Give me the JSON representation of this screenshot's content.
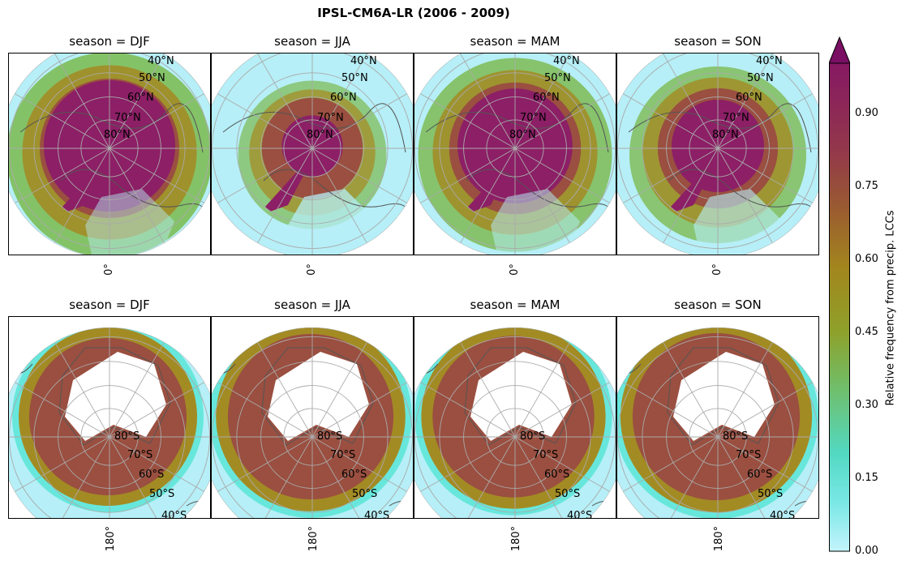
{
  "title": "IPSL-CM6A-LR (2006 - 2009)",
  "colors": {
    "low": "#b6eff7",
    "cyan": "#5ee5d8",
    "green": "#7ab84a",
    "olive": "#a38b24",
    "brown": "#9a4f40",
    "purple": "#8c1f66",
    "grid": "#aaaaaa",
    "coast": "#555555"
  },
  "panels": {
    "north": [
      {
        "title": "season = DJF",
        "lon_label": "0°",
        "intensity": 0.95
      },
      {
        "title": "season = JJA",
        "lon_label": "0°",
        "intensity": 0.45
      },
      {
        "title": "season = MAM",
        "lon_label": "0°",
        "intensity": 0.85
      },
      {
        "title": "season = SON",
        "lon_label": "0°",
        "intensity": 0.7
      }
    ],
    "south": [
      {
        "title": "season = DJF",
        "lon_label": "180°",
        "intensity": 0.6
      },
      {
        "title": "season = JJA",
        "lon_label": "180°",
        "intensity": 0.75
      },
      {
        "title": "season = MAM",
        "lon_label": "180°",
        "intensity": 0.68
      },
      {
        "title": "season = SON",
        "lon_label": "180°",
        "intensity": 0.78
      }
    ]
  },
  "lat_labels": {
    "north": [
      "40°N",
      "50°N",
      "60°N",
      "70°N",
      "80°N"
    ],
    "south": [
      "80°S",
      "70°S",
      "60°S",
      "50°S",
      "40°S"
    ]
  },
  "colorbar": {
    "label": "Relative frequency from precip. LCCs",
    "ticks": [
      "0.00",
      "0.15",
      "0.30",
      "0.45",
      "0.60",
      "0.75",
      "0.90"
    ],
    "min": 0.0,
    "max": 1.0,
    "extend": "max"
  }
}
